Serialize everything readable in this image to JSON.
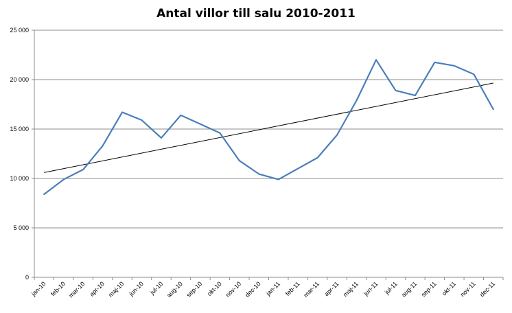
{
  "chart_data": {
    "type": "line",
    "title": "Antal villor till salu 2010-2011",
    "categories": [
      "jan-10",
      "feb-10",
      "mar-10",
      "apr-10",
      "maj-10",
      "jun-10",
      "jul-10",
      "aug-10",
      "sep-10",
      "okt-10",
      "nov-10",
      "dec-10",
      "jan-11",
      "feb-11",
      "mar-11",
      "apr-11",
      "maj-11",
      "jun-11",
      "jul-11",
      "aug-11",
      "sep-11",
      "okt-11",
      "nov-11",
      "dec-11"
    ],
    "series": [
      {
        "values": [
          8400,
          9900,
          10900,
          13300,
          16700,
          15900,
          14100,
          16400,
          15500,
          14600,
          11800,
          10450,
          9900,
          11000,
          12100,
          14400,
          17900,
          22000,
          18900,
          18400,
          21750,
          21400,
          20550,
          17000
        ],
        "color": "#4a7ebb"
      }
    ],
    "trendline": {
      "type": "linear",
      "start": 10600,
      "end": 19650,
      "color": "#000000"
    },
    "ylim": [
      0,
      25000
    ],
    "yticks": [
      "0",
      "5 000",
      "10 000",
      "15 000",
      "20 000",
      "25 000"
    ],
    "ytick_values": [
      0,
      5000,
      10000,
      15000,
      20000,
      25000
    ],
    "grid": true,
    "legend": "none",
    "xlabel": "",
    "ylabel": ""
  }
}
